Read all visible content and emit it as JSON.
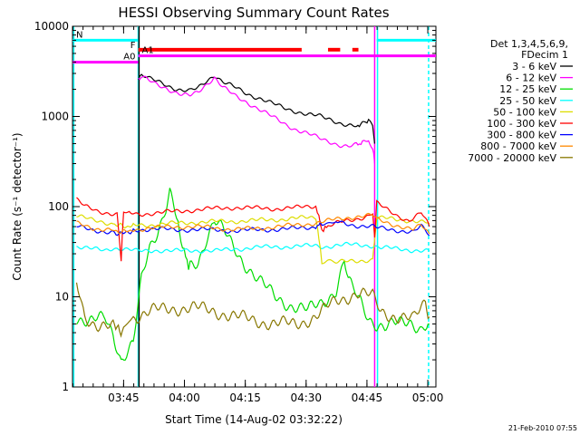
{
  "chart_data": {
    "type": "line",
    "title": "HESSI Observing Summary Count Rates",
    "xlabel": "Start Time (14-Aug-02 03:32:22)",
    "ylabel": "Count Rate (s⁻¹ detector⁻¹)",
    "yscale": "log",
    "ylim": [
      1,
      10000
    ],
    "xlim_minutes": [
      0,
      89.6
    ],
    "x_ticks": [
      {
        "label": "03:45",
        "minutes": 12.6
      },
      {
        "label": "04:00",
        "minutes": 27.6
      },
      {
        "label": "04:15",
        "minutes": 42.6
      },
      {
        "label": "04:30",
        "minutes": 57.6
      },
      {
        "label": "04:45",
        "minutes": 72.6
      },
      {
        "label": "05:00",
        "minutes": 87.6
      }
    ],
    "y_ticks": [
      {
        "label": "1",
        "value": 1
      },
      {
        "label": "10",
        "value": 10
      },
      {
        "label": "100",
        "value": 100
      },
      {
        "label": "1000",
        "value": 1000
      },
      {
        "label": "10000",
        "value": 10000
      }
    ],
    "legend": {
      "placement": "right",
      "header": [
        "Det 1,3,4,5,6,9,",
        "FDecim 1"
      ],
      "entries": [
        {
          "label": "3 - 6 keV",
          "color": "#000000"
        },
        {
          "label": "6 - 12 keV",
          "color": "#ff00ff"
        },
        {
          "label": "12 - 25 keV",
          "color": "#00dd00"
        },
        {
          "label": "25 - 50 keV",
          "color": "#00ffff"
        },
        {
          "label": "50 - 100 keV",
          "color": "#dddd00"
        },
        {
          "label": "100 - 300 keV",
          "color": "#ff0000"
        },
        {
          "label": "300 - 800 keV",
          "color": "#0000ff"
        },
        {
          "label": "800 - 7000 keV",
          "color": "#ff8800"
        },
        {
          "label": "7000 - 20000 keV",
          "color": "#887700"
        }
      ]
    },
    "series": [
      {
        "name": "3 - 6 keV",
        "color": "#000000",
        "x": [
          16.2,
          17,
          18,
          19,
          21,
          23,
          25,
          27,
          29,
          31,
          33,
          35,
          37,
          40,
          43,
          46,
          49,
          52,
          55,
          58,
          61,
          64,
          66,
          68,
          70,
          71.5,
          73,
          74,
          74.5
        ],
        "y": [
          2600,
          2800,
          2700,
          2600,
          2500,
          2300,
          2050,
          1900,
          1900,
          2100,
          2500,
          2900,
          2400,
          2100,
          1800,
          1600,
          1400,
          1250,
          1150,
          1050,
          1000,
          920,
          850,
          800,
          770,
          850,
          900,
          800,
          500
        ]
      },
      {
        "name": "6 - 12 keV",
        "color": "#ff00ff",
        "x": [
          16.2,
          17,
          18,
          19,
          21,
          23,
          25,
          27,
          29,
          31,
          33,
          35,
          37,
          40,
          43,
          46,
          49,
          52,
          55,
          58,
          61,
          64,
          66,
          68,
          70,
          71.5,
          73,
          74,
          74.5
        ],
        "y": [
          2700,
          2700,
          2600,
          2500,
          2300,
          2100,
          1850,
          1700,
          1700,
          1900,
          2300,
          2700,
          2100,
          1700,
          1450,
          1200,
          1000,
          850,
          720,
          640,
          570,
          520,
          480,
          460,
          480,
          520,
          550,
          450,
          300
        ]
      },
      {
        "name": "12 - 25 keV",
        "color": "#00dd00",
        "x": [
          1,
          4,
          8,
          10,
          12,
          15,
          17,
          19,
          21,
          23,
          24,
          26,
          27.5,
          29,
          31,
          33,
          35,
          37,
          39,
          42,
          46,
          50,
          54,
          58,
          62,
          65,
          67,
          68,
          69,
          71,
          73,
          75,
          77,
          80,
          83,
          86,
          88
        ],
        "y": [
          6,
          5,
          6,
          4,
          2,
          3,
          15,
          35,
          55,
          100,
          150,
          65,
          30,
          22,
          25,
          45,
          70,
          55,
          40,
          25,
          15,
          10,
          8,
          7,
          9,
          12,
          25,
          15,
          12,
          9,
          6,
          5,
          4.5,
          5,
          5.5,
          4.5,
          5
        ]
      },
      {
        "name": "25 - 50 keV",
        "color": "#00ffff",
        "x": [
          1,
          4,
          8,
          10,
          12,
          14,
          16,
          20,
          25,
          30,
          35,
          40,
          45,
          50,
          55,
          60,
          62,
          65,
          70,
          74,
          76,
          80,
          84,
          88
        ],
        "y": [
          36,
          34,
          33,
          35,
          34,
          33,
          32,
          33,
          32,
          33,
          32,
          34,
          35,
          36,
          36,
          37,
          36,
          37,
          38,
          37,
          35,
          34,
          33,
          32
        ]
      },
      {
        "name": "50 - 100 keV",
        "color": "#dddd00",
        "x": [
          1,
          5,
          10,
          12.5,
          15,
          20,
          25,
          30,
          35,
          40,
          45,
          50,
          55,
          60,
          61.5,
          65,
          70,
          74,
          75,
          80,
          84,
          88
        ],
        "y": [
          80,
          70,
          65,
          60,
          62,
          63,
          65,
          67,
          68,
          69,
          70,
          72,
          74,
          76,
          25,
          24,
          25,
          26,
          75,
          72,
          70,
          65
        ]
      },
      {
        "name": "100 - 300 keV",
        "color": "#ff0000",
        "x": [
          1,
          3,
          6,
          9,
          11,
          12,
          12.6,
          14,
          16,
          20,
          25,
          30,
          35,
          40,
          45,
          50,
          55,
          58,
          60,
          61.5,
          63,
          65,
          68,
          71,
          73,
          74,
          74.5,
          75,
          77,
          80,
          83,
          86,
          88
        ],
        "y": [
          120,
          100,
          90,
          85,
          82,
          25,
          90,
          85,
          82,
          85,
          88,
          92,
          95,
          98,
          96,
          95,
          97,
          100,
          102,
          55,
          60,
          65,
          70,
          75,
          80,
          85,
          45,
          110,
          95,
          80,
          70,
          85,
          60
        ]
      },
      {
        "name": "300 - 800 keV",
        "color": "#0000ff",
        "x": [
          1,
          5,
          10,
          12.5,
          15,
          20,
          25,
          30,
          35,
          40,
          45,
          50,
          55,
          60,
          61.5,
          65,
          70,
          74,
          75,
          80,
          84,
          86,
          88
        ],
        "y": [
          60,
          55,
          52,
          50,
          55,
          57,
          55,
          56,
          55,
          54,
          55,
          56,
          57,
          60,
          65,
          67,
          62,
          60,
          58,
          55,
          52,
          60,
          48
        ]
      },
      {
        "name": "800 - 7000 keV",
        "color": "#ff8800",
        "x": [
          1,
          5,
          10,
          12.5,
          15,
          20,
          25,
          30,
          35,
          40,
          45,
          50,
          55,
          60,
          65,
          70,
          74,
          75,
          80,
          84,
          86,
          88
        ],
        "y": [
          65,
          58,
          55,
          52,
          56,
          58,
          60,
          60,
          58,
          56,
          57,
          60,
          62,
          66,
          72,
          78,
          80,
          72,
          62,
          55,
          62,
          50
        ]
      },
      {
        "name": "7000 - 20000 keV",
        "color": "#887700",
        "x": [
          1,
          3,
          6,
          10,
          12.6,
          15,
          20,
          25,
          30,
          35,
          40,
          45,
          50,
          55,
          60,
          65,
          70,
          74,
          76,
          80,
          84,
          87,
          88
        ],
        "y": [
          14,
          6,
          5,
          4.5,
          4.5,
          6,
          7,
          7.5,
          7.5,
          7,
          6,
          5.5,
          5,
          5,
          6,
          9,
          11,
          10,
          7,
          6,
          5.5,
          9,
          6
        ]
      }
    ],
    "flags": [
      {
        "label": "N",
        "color": "#00ffff",
        "level": 7000,
        "segments": [
          [
            0,
            16.2
          ],
          [
            75,
            89.6
          ]
        ]
      },
      {
        "label": "F",
        "color": "#ff0000",
        "level": 5500,
        "segments": [
          [
            16.2,
            56.5
          ],
          [
            63,
            66
          ],
          [
            69,
            70.5
          ]
        ]
      },
      {
        "label": "A0",
        "color": "#ff00ff",
        "level": 4000,
        "segments": [
          [
            0,
            16.2
          ]
        ]
      },
      {
        "label": "A1",
        "color": "#ff00ff",
        "level": 4700,
        "segments": [
          [
            16.2,
            89.6
          ]
        ]
      }
    ],
    "verticals": [
      {
        "minutes": 0.3,
        "color": "#00ffff",
        "dashed": false
      },
      {
        "minutes": 16.2,
        "color": "#00ffff",
        "dashed": false
      },
      {
        "minutes": 16.4,
        "color": "#000000",
        "dashed": false
      },
      {
        "minutes": 74.5,
        "color": "#ff00ff",
        "dashed": false
      },
      {
        "minutes": 75.2,
        "color": "#00ffff",
        "dashed": false
      },
      {
        "minutes": 87.8,
        "color": "#00ffff",
        "dashed": true
      }
    ],
    "footer": "21-Feb-2010 07:55"
  }
}
